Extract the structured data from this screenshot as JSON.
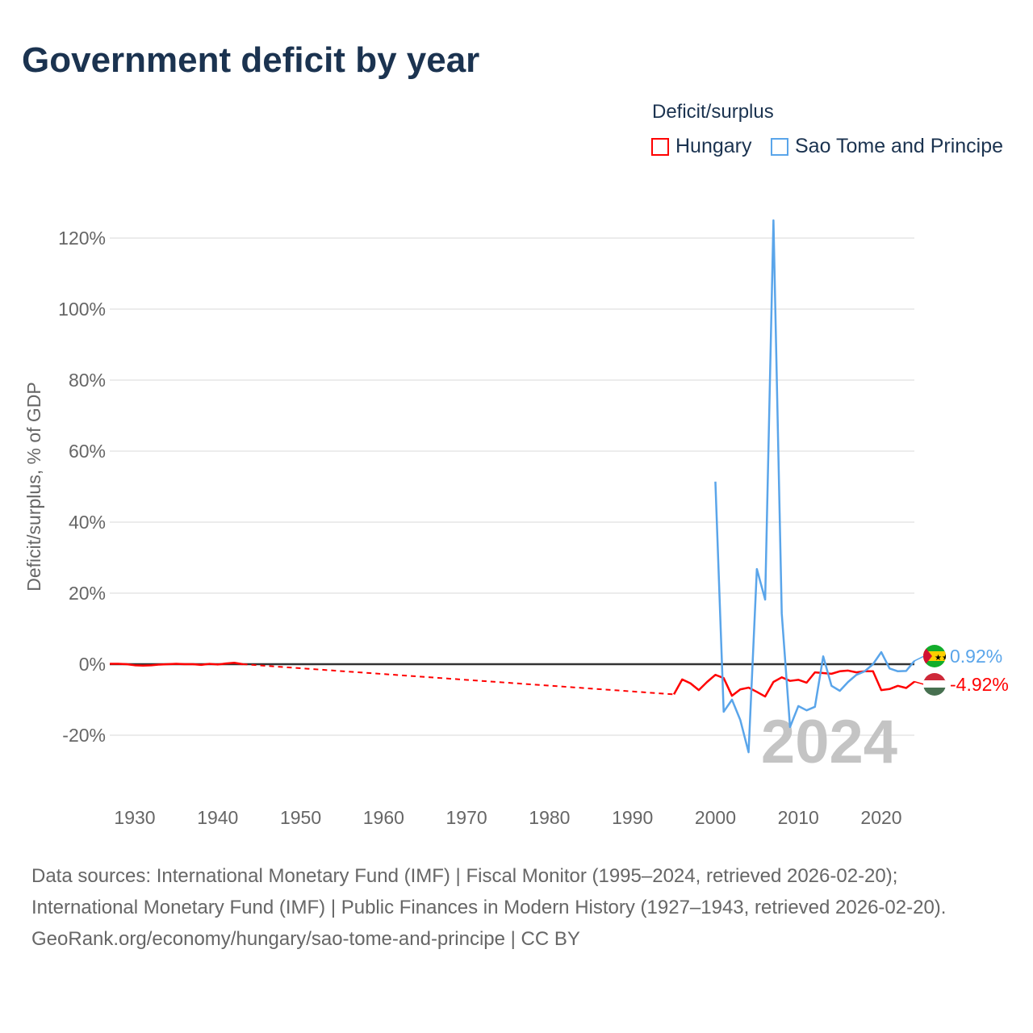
{
  "title": "Government deficit by year",
  "legend": {
    "title": "Deficit/surplus",
    "items": [
      {
        "name": "Hungary",
        "color": "#ff0000"
      },
      {
        "name": "Sao Tome and Principe",
        "color": "#5aa5ea"
      }
    ]
  },
  "footer": {
    "line1": "Data sources: International Monetary Fund (IMF) | Fiscal Monitor (1995–2024, retrieved 2026-02-20); International Monetary Fund (IMF) | Public Finances in Modern History (1927–1943, retrieved 2026-02-20).",
    "line2": "GeoRank.org/economy/hungary/sao-tome-and-principe | CC BY"
  },
  "chart_data": {
    "type": "line",
    "title": "Government deficit by year",
    "xlabel": "",
    "ylabel": "Deficit/surplus, % of GDP",
    "xlim": [
      1927,
      2024
    ],
    "ylim": [
      -30,
      125
    ],
    "x_ticks": [
      1930,
      1940,
      1950,
      1960,
      1970,
      1980,
      1990,
      2000,
      2010,
      2020
    ],
    "y_ticks": [
      -20,
      0,
      20,
      40,
      60,
      80,
      100,
      120
    ],
    "y_tick_labels": [
      "-20%",
      "0%",
      "20%",
      "40%",
      "60%",
      "80%",
      "100%",
      "120%"
    ],
    "year_watermark": "2024",
    "series": [
      {
        "name": "Hungary",
        "color": "#ff0000",
        "end_label": "-4.92%",
        "x": [
          1927,
          1928,
          1929,
          1930,
          1931,
          1932,
          1933,
          1934,
          1935,
          1936,
          1937,
          1938,
          1939,
          1940,
          1941,
          1942,
          1943,
          1995,
          1996,
          1997,
          1998,
          1999,
          2000,
          2001,
          2002,
          2003,
          2004,
          2005,
          2006,
          2007,
          2008,
          2009,
          2010,
          2011,
          2012,
          2013,
          2014,
          2015,
          2016,
          2017,
          2018,
          2019,
          2020,
          2021,
          2022,
          2023,
          2024
        ],
        "y": [
          0.1,
          0.1,
          0,
          -0.3,
          -0.4,
          -0.3,
          -0.1,
          0,
          0.1,
          0,
          0,
          -0.2,
          0.1,
          -0.1,
          0.2,
          0.4,
          0,
          -8.5,
          -4.3,
          -5.4,
          -7.3,
          -5.0,
          -3.0,
          -3.9,
          -8.9,
          -7.1,
          -6.6,
          -7.8,
          -9.1,
          -5.0,
          -3.7,
          -4.7,
          -4.4,
          -5.2,
          -2.3,
          -2.5,
          -2.7,
          -2.0,
          -1.8,
          -2.3,
          -2.0,
          -2.0,
          -7.3,
          -7.0,
          -6.1,
          -6.7,
          -4.92
        ],
        "dashed_gap": [
          1943,
          1995
        ]
      },
      {
        "name": "Sao Tome and Principe",
        "color": "#5aa5ea",
        "end_label": "0.92%",
        "x": [
          2000,
          2001,
          2002,
          2003,
          2004,
          2005,
          2006,
          2007,
          2008,
          2009,
          2010,
          2011,
          2012,
          2013,
          2014,
          2015,
          2016,
          2017,
          2018,
          2019,
          2020,
          2021,
          2022,
          2023,
          2024
        ],
        "y": [
          51.4,
          -13.4,
          -10.0,
          -15.7,
          -24.8,
          26.8,
          18.2,
          125.0,
          14.3,
          -17.7,
          -11.8,
          -13.0,
          -12.0,
          2.2,
          -6.1,
          -7.5,
          -5.0,
          -3.0,
          -2.0,
          0.0,
          3.4,
          -1.2,
          -2.0,
          -1.9,
          0.92
        ]
      }
    ]
  }
}
